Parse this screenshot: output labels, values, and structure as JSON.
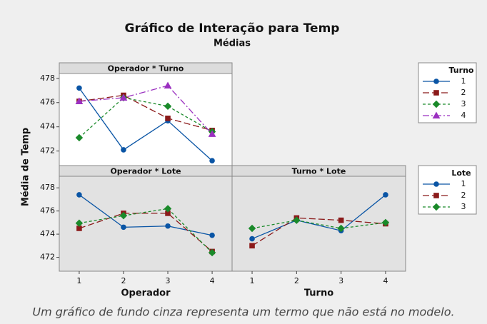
{
  "title": "Gráfico de Interação para Temp",
  "subtitle": "Médias",
  "ylabel": "Média de Temp",
  "note": "Um gráfico de fundo cinza representa um termo que não está no modelo.",
  "chart_data": [
    {
      "type": "line",
      "title": "Operador * Turno",
      "legend_title": "Turno",
      "background": "#ffffff",
      "x": [
        1,
        2,
        3,
        4
      ],
      "xlim": [
        0.55,
        4.45
      ],
      "ylim": [
        470.8,
        478.4
      ],
      "yticks": [
        472,
        474,
        476,
        478
      ],
      "series": [
        {
          "name": "1",
          "color": "#0a55a5",
          "marker": "circle",
          "dash": "solid",
          "values": [
            477.2,
            472.1,
            474.5,
            471.2
          ]
        },
        {
          "name": "2",
          "color": "#8b1a1a",
          "marker": "square",
          "dash": "long",
          "values": [
            476.1,
            476.6,
            474.7,
            473.7
          ]
        },
        {
          "name": "3",
          "color": "#1a8a2a",
          "marker": "diamond",
          "dash": "short",
          "values": [
            473.1,
            476.4,
            475.7,
            473.6
          ]
        },
        {
          "name": "4",
          "color": "#9b30c0",
          "marker": "triangle",
          "dash": "dashdot",
          "values": [
            476.1,
            476.4,
            477.4,
            473.4
          ]
        }
      ]
    },
    {
      "type": "line",
      "title": "Operador * Lote",
      "legend_title": "Lote",
      "xlabel": "Operador",
      "background": "#e2e2e2",
      "x": [
        1,
        2,
        3,
        4
      ],
      "xticks": [
        1,
        2,
        3,
        4
      ],
      "xlim": [
        0.55,
        4.45
      ],
      "ylim": [
        470.8,
        479.0
      ],
      "yticks": [
        472,
        474,
        476,
        478
      ],
      "series": [
        {
          "name": "1",
          "color": "#0a55a5",
          "marker": "circle",
          "dash": "solid",
          "values": [
            477.4,
            474.6,
            474.7,
            473.9
          ]
        },
        {
          "name": "2",
          "color": "#8b1a1a",
          "marker": "square",
          "dash": "long",
          "values": [
            474.5,
            475.8,
            475.8,
            472.5
          ]
        },
        {
          "name": "3",
          "color": "#1a8a2a",
          "marker": "diamond",
          "dash": "short",
          "values": [
            474.95,
            475.6,
            476.2,
            472.4
          ]
        }
      ]
    },
    {
      "type": "line",
      "title": "Turno * Lote",
      "xlabel": "Turno",
      "background": "#e2e2e2",
      "x": [
        1,
        2,
        3,
        4
      ],
      "xticks": [
        1,
        2,
        3,
        4
      ],
      "xlim": [
        0.55,
        4.45
      ],
      "ylim": [
        470.8,
        479.0
      ],
      "yticks": [
        472,
        474,
        476,
        478
      ],
      "series": [
        {
          "color": "#0a55a5",
          "marker": "circle",
          "dash": "solid",
          "values": [
            473.6,
            475.2,
            474.3,
            477.4
          ]
        },
        {
          "color": "#8b1a1a",
          "marker": "square",
          "dash": "long",
          "values": [
            473.0,
            475.4,
            475.2,
            474.9
          ]
        },
        {
          "color": "#1a8a2a",
          "marker": "diamond",
          "dash": "short",
          "values": [
            474.5,
            475.2,
            474.5,
            475.0
          ]
        }
      ]
    }
  ]
}
